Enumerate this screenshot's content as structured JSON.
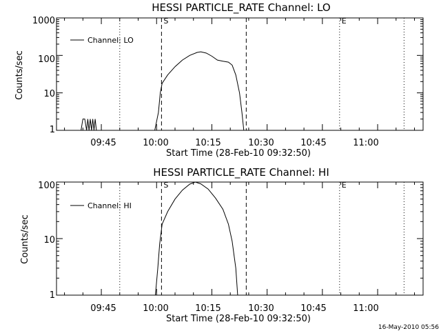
{
  "footer": {
    "date": "16-May-2010 05:56"
  },
  "colors": {
    "background": "#ffffff",
    "foreground": "#000000"
  },
  "chart_data": [
    {
      "type": "line",
      "title": "HESSI PARTICLE_RATE Channel: LO",
      "xlabel": "Start Time (28-Feb-10 09:32:50)",
      "ylabel": "Counts/sec",
      "yscale": "log",
      "ylim": [
        1,
        1000
      ],
      "xlim": [
        "09:32:50",
        "11:12:20"
      ],
      "x_ticks": [
        "09:45",
        "10:00",
        "10:15",
        "10:30",
        "10:45",
        "11:00"
      ],
      "y_ticks": [
        "1",
        "10",
        "100",
        "1000"
      ],
      "legend": {
        "position": "top-left",
        "entries": [
          "Channel: LO"
        ]
      },
      "markers": [
        {
          "time": "09:50:00",
          "style": "dotted",
          "label": ""
        },
        {
          "time": "10:01:20",
          "style": "dashed",
          "label": "S"
        },
        {
          "time": "10:24:20",
          "style": "dashed",
          "label": ""
        },
        {
          "time": "10:49:40",
          "style": "dotted",
          "label": "E"
        },
        {
          "time": "11:07:10",
          "style": "dotted",
          "label": ""
        }
      ],
      "series": [
        {
          "name": "Channel: LO",
          "points": [
            [
              "09:39:30",
              1
            ],
            [
              "09:40:00",
              2
            ],
            [
              "09:40:30",
              2
            ],
            [
              "09:41:00",
              1
            ],
            [
              "09:41:20",
              2
            ],
            [
              "09:41:40",
              1
            ],
            [
              "09:42:00",
              2
            ],
            [
              "09:42:20",
              1
            ],
            [
              "09:42:40",
              2
            ],
            [
              "09:43:00",
              1
            ],
            [
              "09:43:20",
              2
            ],
            [
              "09:43:40",
              1
            ],
            [
              "09:59:30",
              1
            ],
            [
              "10:00:30",
              3
            ],
            [
              "10:01:00",
              10
            ],
            [
              "10:01:30",
              18
            ],
            [
              "10:03:00",
              30
            ],
            [
              "10:05:00",
              50
            ],
            [
              "10:07:00",
              75
            ],
            [
              "10:09:00",
              100
            ],
            [
              "10:11:00",
              120
            ],
            [
              "10:12:00",
              125
            ],
            [
              "10:13:30",
              115
            ],
            [
              "10:15:00",
              95
            ],
            [
              "10:16:30",
              75
            ],
            [
              "10:18:00",
              70
            ],
            [
              "10:19:30",
              66
            ],
            [
              "10:20:30",
              55
            ],
            [
              "10:21:30",
              30
            ],
            [
              "10:22:30",
              10
            ],
            [
              "10:23:10",
              3
            ],
            [
              "10:23:40",
              1
            ]
          ]
        }
      ]
    },
    {
      "type": "line",
      "title": "HESSI PARTICLE_RATE Channel: HI",
      "xlabel": "Start Time (28-Feb-10 09:32:50)",
      "ylabel": "Counts/sec",
      "yscale": "log",
      "ylim": [
        1,
        100
      ],
      "xlim": [
        "09:32:50",
        "11:12:20"
      ],
      "x_ticks": [
        "09:45",
        "10:00",
        "10:15",
        "10:30",
        "10:45",
        "11:00"
      ],
      "y_ticks": [
        "1",
        "10",
        "100"
      ],
      "legend": {
        "position": "top-left",
        "entries": [
          "Channel: HI"
        ]
      },
      "markers": [
        {
          "time": "09:50:00",
          "style": "dotted",
          "label": ""
        },
        {
          "time": "10:01:20",
          "style": "dashed",
          "label": "S"
        },
        {
          "time": "10:24:20",
          "style": "dashed",
          "label": ""
        },
        {
          "time": "10:49:40",
          "style": "dotted",
          "label": "E"
        },
        {
          "time": "11:07:10",
          "style": "dotted",
          "label": ""
        }
      ],
      "series": [
        {
          "name": "Channel: HI",
          "points": [
            [
              "09:59:40",
              1
            ],
            [
              "10:00:20",
              3
            ],
            [
              "10:00:50",
              8
            ],
            [
              "10:01:30",
              18
            ],
            [
              "10:03:00",
              30
            ],
            [
              "10:05:00",
              50
            ],
            [
              "10:07:00",
              72
            ],
            [
              "10:09:00",
              92
            ],
            [
              "10:10:30",
              100
            ],
            [
              "10:12:00",
              93
            ],
            [
              "10:14:00",
              75
            ],
            [
              "10:16:00",
              52
            ],
            [
              "10:18:00",
              33
            ],
            [
              "10:19:30",
              18
            ],
            [
              "10:20:30",
              9
            ],
            [
              "10:21:30",
              3
            ],
            [
              "10:22:00",
              1
            ]
          ]
        }
      ]
    }
  ]
}
